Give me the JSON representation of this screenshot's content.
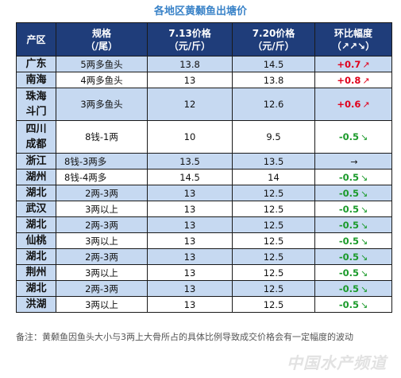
{
  "title": "各地区黄颡鱼出塘价",
  "headers": {
    "region": "产区",
    "spec": "规格\n（/尾）",
    "price1": "7.13价格\n（元/斤）",
    "price2": "7.20价格\n（元/斤）",
    "change": "环比幅度\n（↗↗↘）"
  },
  "rows": [
    {
      "region": "广东",
      "spec": "5两多鱼头",
      "p1": "13.8",
      "p2": "14.5",
      "chg": "+0.7",
      "dir": "↗",
      "color": "#e0001b"
    },
    {
      "region": "南海",
      "spec": "4两多鱼头",
      "p1": "13",
      "p2": "13.8",
      "chg": "+0.8",
      "dir": "↗",
      "color": "#e0001b"
    },
    {
      "region": "珠海\n斗门",
      "spec": "3两多鱼头",
      "p1": "12",
      "p2": "12.6",
      "chg": "+0.6",
      "dir": "↗",
      "color": "#e0001b"
    },
    {
      "region": "四川\n成都",
      "spec": "8钱-1两",
      "p1": "10",
      "p2": "9.5",
      "chg": "-0.5",
      "dir": "↘",
      "color": "#1a9a2a"
    },
    {
      "region": "浙江",
      "spec": "8钱-3两多",
      "p1": "13.5",
      "p2": "13.5",
      "chg": "",
      "dir": "→",
      "color": "#111111"
    },
    {
      "region": "湖州",
      "spec": "8钱-4两多",
      "p1": "14.5",
      "p2": "14",
      "chg": "-0.5",
      "dir": "↘",
      "color": "#1a9a2a"
    },
    {
      "region": "湖北",
      "spec": "2两-3两",
      "p1": "13",
      "p2": "12.5",
      "chg": "-0.5",
      "dir": "↘",
      "color": "#1a9a2a"
    },
    {
      "region": "武汉",
      "spec": "3两以上",
      "p1": "13",
      "p2": "12.5",
      "chg": "-0.5",
      "dir": "↘",
      "color": "#1a9a2a"
    },
    {
      "region": "湖北",
      "spec": "2两-3两",
      "p1": "13",
      "p2": "12.5",
      "chg": "-0.5",
      "dir": "↘",
      "color": "#1a9a2a"
    },
    {
      "region": "仙桃",
      "spec": "3两以上",
      "p1": "13",
      "p2": "12.5",
      "chg": "-0.5",
      "dir": "↘",
      "color": "#1a9a2a"
    },
    {
      "region": "湖北",
      "spec": "2两-3两",
      "p1": "13",
      "p2": "12.5",
      "chg": "-0.5",
      "dir": "↘",
      "color": "#1a9a2a"
    },
    {
      "region": "荆州",
      "spec": "3两以上",
      "p1": "13",
      "p2": "12.5",
      "chg": "-0.5",
      "dir": "↘",
      "color": "#1a9a2a"
    },
    {
      "region": "湖北",
      "spec": "2两-3两",
      "p1": "13",
      "p2": "12.5",
      "chg": "-0.5",
      "dir": "↘",
      "color": "#1a9a2a"
    },
    {
      "region": "洪湖",
      "spec": "3两以上",
      "p1": "13",
      "p2": "12.5",
      "chg": "-0.5",
      "dir": "↘",
      "color": "#1a9a2a"
    }
  ],
  "note": "备注：黄颡鱼因鱼头大小与3两上大骨所占的具体比例导致成交价格会有一定幅度的波动",
  "watermark": "中国水产频道"
}
